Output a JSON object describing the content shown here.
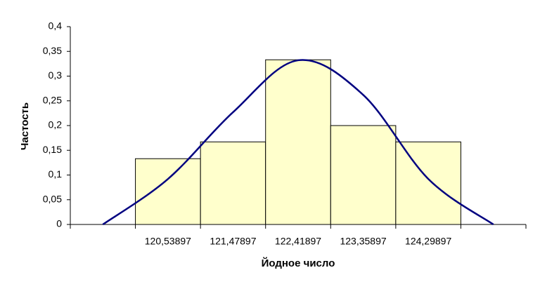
{
  "chart_data": {
    "type": "bar",
    "xlabel": "Йодное число",
    "ylabel": "Частость",
    "categories": [
      null,
      "120,53897",
      "121,47897",
      "122,41897",
      "123,35897",
      "124,29897",
      null
    ],
    "values": [
      0,
      0.133,
      0.167,
      0.333,
      0.2,
      0.167,
      0
    ],
    "color": "#ffffcc",
    "edgecolor": "#000000",
    "curve_values": [
      0,
      0.092,
      0.227,
      0.332,
      0.262,
      0.092,
      0
    ],
    "curve_color": "#000080",
    "ylim": [
      0,
      0.4
    ],
    "yticks": [
      0,
      {
        "value": 0.05,
        "label": "0,05"
      },
      {
        "value": 0.1,
        "label": "0,1"
      },
      {
        "value": 0.15,
        "label": "0,15"
      },
      {
        "value": 0.2,
        "label": "0,2"
      },
      {
        "value": 0.25,
        "label": "0,25"
      },
      {
        "value": 0.3,
        "label": "0,3"
      },
      {
        "value": 0.35,
        "label": "0,35"
      },
      {
        "value": 0.4,
        "label": "0,4"
      }
    ],
    "grid": false
  }
}
